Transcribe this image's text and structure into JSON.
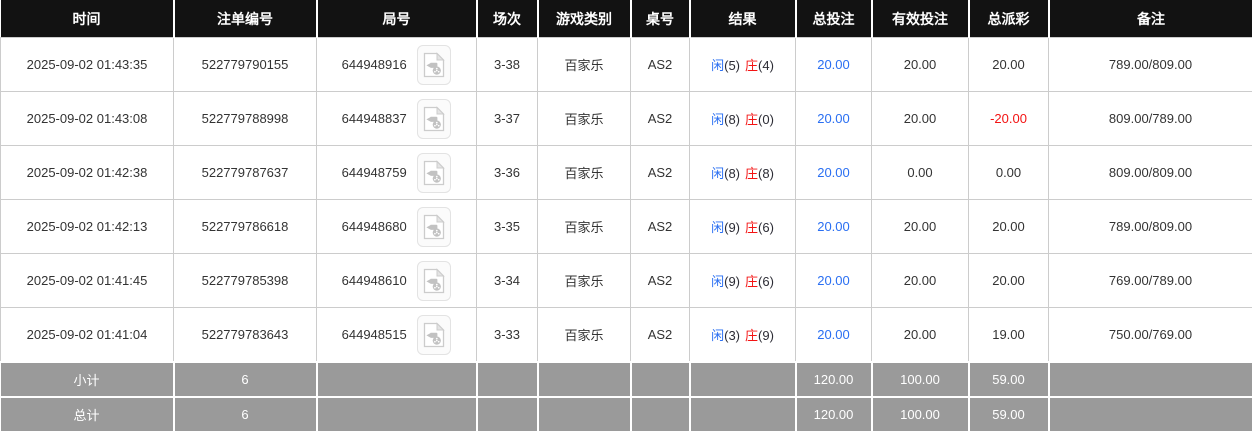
{
  "table": {
    "columns": [
      {
        "label": "时间"
      },
      {
        "label": "注单编号"
      },
      {
        "label": "局号"
      },
      {
        "label": "场次"
      },
      {
        "label": "游戏类别"
      },
      {
        "label": "桌号"
      },
      {
        "label": "结果"
      },
      {
        "label": "总投注"
      },
      {
        "label": "有效投注"
      },
      {
        "label": "总派彩"
      },
      {
        "label": "备注"
      }
    ],
    "rows": [
      {
        "time": "2025-09-02 01:43:35",
        "bet_id": "522779790155",
        "round_id": "644948916",
        "session": "3-38",
        "game_type": "百家乐",
        "table_no": "AS2",
        "result": {
          "player_label": "闲",
          "player_points": "(5)",
          "banker_label": "庄",
          "banker_points": "(4)"
        },
        "total_bet": "20.00",
        "valid_bet": "20.00",
        "total_payout": "20.00",
        "payout_negative": false,
        "remark": "789.00/809.00"
      },
      {
        "time": "2025-09-02 01:43:08",
        "bet_id": "522779788998",
        "round_id": "644948837",
        "session": "3-37",
        "game_type": "百家乐",
        "table_no": "AS2",
        "result": {
          "player_label": "闲",
          "player_points": "(8)",
          "banker_label": "庄",
          "banker_points": "(0)"
        },
        "total_bet": "20.00",
        "valid_bet": "20.00",
        "total_payout": "-20.00",
        "payout_negative": true,
        "remark": "809.00/789.00"
      },
      {
        "time": "2025-09-02 01:42:38",
        "bet_id": "522779787637",
        "round_id": "644948759",
        "session": "3-36",
        "game_type": "百家乐",
        "table_no": "AS2",
        "result": {
          "player_label": "闲",
          "player_points": "(8)",
          "banker_label": "庄",
          "banker_points": "(8)"
        },
        "total_bet": "20.00",
        "valid_bet": "0.00",
        "total_payout": "0.00",
        "payout_negative": false,
        "remark": "809.00/809.00"
      },
      {
        "time": "2025-09-02 01:42:13",
        "bet_id": "522779786618",
        "round_id": "644948680",
        "session": "3-35",
        "game_type": "百家乐",
        "table_no": "AS2",
        "result": {
          "player_label": "闲",
          "player_points": "(9)",
          "banker_label": "庄",
          "banker_points": "(6)"
        },
        "total_bet": "20.00",
        "valid_bet": "20.00",
        "total_payout": "20.00",
        "payout_negative": false,
        "remark": "789.00/809.00"
      },
      {
        "time": "2025-09-02 01:41:45",
        "bet_id": "522779785398",
        "round_id": "644948610",
        "session": "3-34",
        "game_type": "百家乐",
        "table_no": "AS2",
        "result": {
          "player_label": "闲",
          "player_points": "(9)",
          "banker_label": "庄",
          "banker_points": "(6)"
        },
        "total_bet": "20.00",
        "valid_bet": "20.00",
        "total_payout": "20.00",
        "payout_negative": false,
        "remark": "769.00/789.00"
      },
      {
        "time": "2025-09-02 01:41:04",
        "bet_id": "522779783643",
        "round_id": "644948515",
        "session": "3-33",
        "game_type": "百家乐",
        "table_no": "AS2",
        "result": {
          "player_label": "闲",
          "player_points": "(3)",
          "banker_label": "庄",
          "banker_points": "(9)"
        },
        "total_bet": "20.00",
        "valid_bet": "20.00",
        "total_payout": "19.00",
        "payout_negative": false,
        "remark": "750.00/769.00"
      }
    ],
    "footer": [
      {
        "label": "小计",
        "count": "6",
        "total_bet": "120.00",
        "valid_bet": "100.00",
        "total_payout": "59.00"
      },
      {
        "label": "总计",
        "count": "6",
        "total_bet": "120.00",
        "valid_bet": "100.00",
        "total_payout": "59.00"
      }
    ]
  },
  "icons": {
    "video_replay": "video-file-icon"
  },
  "colors": {
    "header_bg": "#121212",
    "footer_bg": "#9a9a9a",
    "player_blue": "#2a6ff2",
    "banker_red": "#f31313",
    "body_border": "#cccccc"
  }
}
